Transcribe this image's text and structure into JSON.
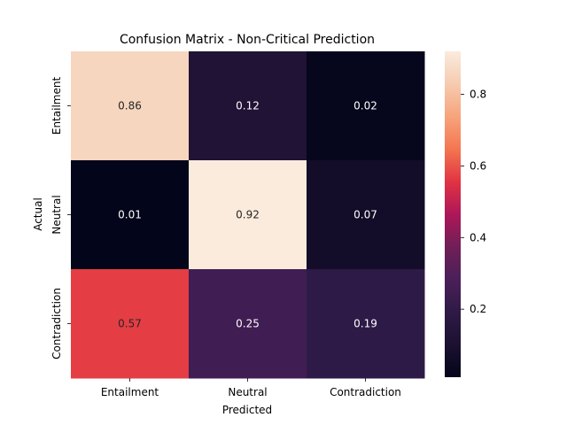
{
  "chart_data": {
    "type": "heatmap",
    "title": "Confusion Matrix - Non-Critical Prediction",
    "xlabel": "Predicted",
    "ylabel": "Actual",
    "x_categories": [
      "Entailment",
      "Neutral",
      "Contradiction"
    ],
    "y_categories": [
      "Entailment",
      "Neutral",
      "Contradiction"
    ],
    "values": [
      [
        0.86,
        0.12,
        0.02
      ],
      [
        0.01,
        0.92,
        0.07
      ],
      [
        0.57,
        0.25,
        0.19
      ]
    ],
    "colormap": "rocket",
    "colorbar": {
      "range": [
        0.01,
        0.92
      ],
      "ticks": [
        0.2,
        0.4,
        0.6,
        0.8
      ],
      "tick_labels": [
        "0.2",
        "0.4",
        "0.6",
        "0.8"
      ]
    },
    "grid": false
  }
}
